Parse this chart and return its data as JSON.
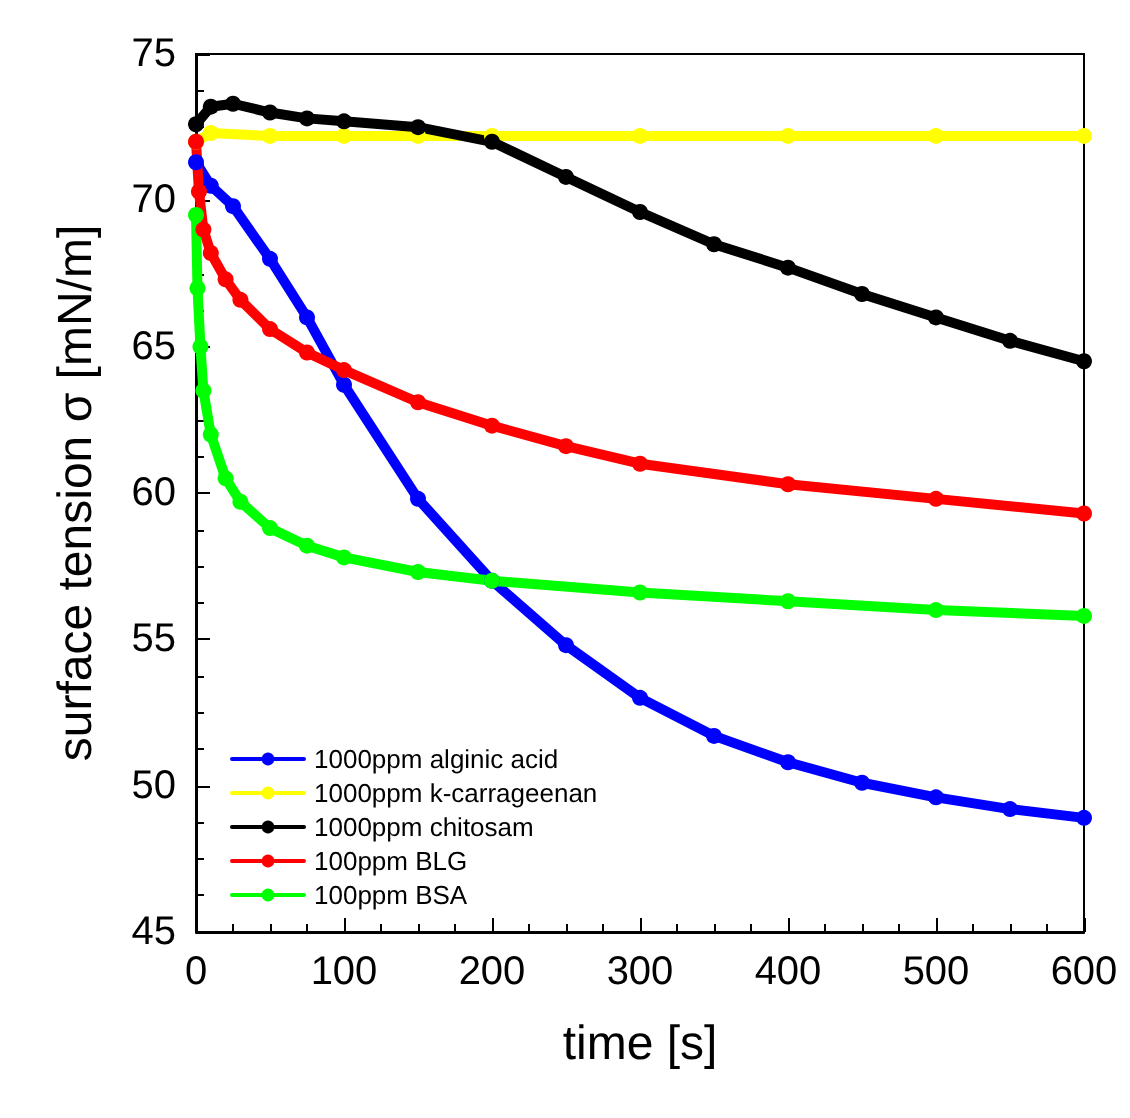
{
  "chart_data": {
    "type": "line",
    "xlabel": "time [s]",
    "ylabel": "surface tension σ [mN/m]",
    "xlim": [
      0,
      600
    ],
    "xticks": [
      0,
      100,
      200,
      300,
      400,
      500,
      600
    ],
    "ylim": [
      45,
      75
    ],
    "yticks": [
      45,
      50,
      55,
      60,
      65,
      70,
      75
    ],
    "grid": false,
    "legend": "bottom left",
    "marker": "circle",
    "series": [
      {
        "name": "1000ppm alginic acid",
        "color": "#0000ff",
        "x": [
          0,
          10,
          25,
          50,
          75,
          100,
          150,
          200,
          250,
          300,
          350,
          400,
          450,
          500,
          550,
          600
        ],
        "values": [
          71.3,
          70.5,
          69.8,
          68.0,
          66.0,
          63.7,
          59.8,
          57.0,
          54.8,
          53.0,
          51.7,
          50.8,
          50.1,
          49.6,
          49.2,
          48.9
        ]
      },
      {
        "name": "1000ppm k-carrageenan",
        "color": "#ffff00",
        "x": [
          0,
          10,
          50,
          100,
          150,
          200,
          300,
          400,
          500,
          600
        ],
        "values": [
          72.0,
          72.3,
          72.2,
          72.2,
          72.2,
          72.2,
          72.2,
          72.2,
          72.2,
          72.2
        ]
      },
      {
        "name": "1000ppm chitosam",
        "color": "#000000",
        "x": [
          0,
          10,
          25,
          50,
          75,
          100,
          150,
          200,
          250,
          300,
          350,
          400,
          450,
          500,
          550,
          600
        ],
        "values": [
          72.6,
          73.2,
          73.3,
          73.0,
          72.8,
          72.7,
          72.5,
          72.0,
          70.8,
          69.6,
          68.5,
          67.7,
          66.8,
          66.0,
          65.2,
          64.5
        ]
      },
      {
        "name": "100ppm BLG",
        "color": "#ff0000",
        "x": [
          0,
          2,
          5,
          10,
          20,
          30,
          50,
          75,
          100,
          150,
          200,
          250,
          300,
          400,
          500,
          600
        ],
        "values": [
          72.0,
          70.3,
          69.0,
          68.2,
          67.3,
          66.6,
          65.6,
          64.8,
          64.2,
          63.1,
          62.3,
          61.6,
          61.0,
          60.3,
          59.8,
          59.3
        ]
      },
      {
        "name": "100ppm BSA",
        "color": "#00ff00",
        "x": [
          0,
          1,
          3,
          5,
          10,
          20,
          30,
          50,
          75,
          100,
          150,
          200,
          300,
          400,
          500,
          600
        ],
        "values": [
          69.5,
          67.0,
          65.0,
          63.5,
          62.0,
          60.5,
          59.7,
          58.8,
          58.2,
          57.8,
          57.3,
          57.0,
          56.6,
          56.3,
          56.0,
          55.8
        ]
      }
    ]
  }
}
